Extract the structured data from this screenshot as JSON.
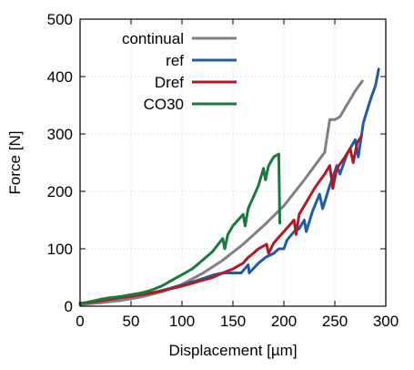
{
  "chart_data": {
    "type": "line",
    "title": "",
    "xlabel": "Displacement [µm]",
    "ylabel": "Force [N]",
    "xlim": [
      0,
      300
    ],
    "ylim": [
      0,
      500
    ],
    "xticks": [
      0,
      50,
      100,
      150,
      200,
      250,
      300
    ],
    "yticks": [
      0,
      100,
      200,
      300,
      400,
      500
    ],
    "grid": true,
    "legend_position": "top-left",
    "series": [
      {
        "name": "continual",
        "color": "#808080",
        "x": [
          0,
          20,
          40,
          60,
          80,
          100,
          120,
          140,
          160,
          180,
          200,
          220,
          240,
          245,
          250,
          255,
          260,
          270,
          277
        ],
        "y": [
          3,
          6,
          10,
          16,
          25,
          38,
          57,
          80,
          108,
          140,
          175,
          220,
          268,
          325,
          325,
          330,
          345,
          375,
          392
        ]
      },
      {
        "name": "ref",
        "color": "#1f5ca8",
        "x": [
          0,
          10,
          20,
          30,
          40,
          50,
          60,
          70,
          80,
          90,
          100,
          110,
          120,
          130,
          140,
          150,
          158,
          165,
          166,
          175,
          182,
          190,
          195,
          200,
          203,
          210,
          215,
          220,
          222,
          228,
          235,
          238,
          245,
          252,
          255,
          262,
          270,
          273,
          278,
          285,
          290,
          293
        ],
        "y": [
          5,
          7,
          10,
          13,
          16,
          18,
          20,
          23,
          27,
          32,
          37,
          42,
          48,
          54,
          58,
          58,
          58,
          72,
          58,
          75,
          85,
          92,
          100,
          100,
          115,
          130,
          135,
          150,
          130,
          165,
          195,
          170,
          210,
          245,
          230,
          265,
          290,
          260,
          320,
          360,
          385,
          413
        ]
      },
      {
        "name": "Dref",
        "color": "#b01a24",
        "x": [
          0,
          10,
          20,
          30,
          40,
          50,
          60,
          70,
          80,
          90,
          100,
          110,
          120,
          130,
          140,
          150,
          160,
          165,
          170,
          175,
          180,
          183,
          185,
          190,
          195,
          200,
          205,
          210,
          212,
          215,
          220,
          225,
          230,
          235,
          240,
          245,
          248,
          252,
          260,
          265,
          268,
          272,
          276
        ],
        "y": [
          5,
          7,
          9,
          12,
          15,
          17,
          20,
          23,
          27,
          31,
          35,
          40,
          45,
          50,
          58,
          65,
          75,
          85,
          92,
          100,
          105,
          108,
          92,
          110,
          120,
          130,
          140,
          150,
          125,
          160,
          175,
          190,
          205,
          218,
          230,
          245,
          205,
          240,
          260,
          275,
          250,
          285,
          296
        ]
      },
      {
        "name": "CO30",
        "color": "#1a7a3c",
        "x": [
          0,
          10,
          20,
          30,
          40,
          50,
          60,
          70,
          80,
          85,
          90,
          100,
          110,
          115,
          120,
          130,
          140,
          142,
          145,
          150,
          155,
          160,
          162,
          165,
          170,
          175,
          180,
          182,
          185,
          190,
          195,
          196
        ],
        "y": [
          4,
          8,
          12,
          15,
          17,
          20,
          23,
          28,
          35,
          40,
          45,
          55,
          65,
          72,
          80,
          95,
          118,
          100,
          125,
          140,
          150,
          160,
          140,
          170,
          190,
          210,
          240,
          220,
          245,
          260,
          265,
          145
        ]
      }
    ]
  }
}
